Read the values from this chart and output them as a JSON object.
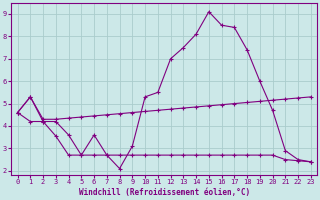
{
  "x": [
    0,
    1,
    2,
    3,
    4,
    5,
    6,
    7,
    8,
    9,
    10,
    11,
    12,
    13,
    14,
    15,
    16,
    17,
    18,
    19,
    20,
    21,
    22,
    23
  ],
  "line_main": [
    4.6,
    5.3,
    4.2,
    4.2,
    3.6,
    2.7,
    3.6,
    2.7,
    2.1,
    3.1,
    5.3,
    5.5,
    7.0,
    7.5,
    8.1,
    9.1,
    8.5,
    8.4,
    7.4,
    6.0,
    4.7,
    2.9,
    2.5,
    2.4
  ],
  "line_upper": [
    4.6,
    5.3,
    4.3,
    4.3,
    4.35,
    4.4,
    4.45,
    4.5,
    4.55,
    4.6,
    4.65,
    4.7,
    4.75,
    4.8,
    4.85,
    4.9,
    4.95,
    5.0,
    5.05,
    5.1,
    5.15,
    5.2,
    5.25,
    5.3
  ],
  "line_lower": [
    4.6,
    4.2,
    4.2,
    3.55,
    2.7,
    2.7,
    2.7,
    2.7,
    2.7,
    2.7,
    2.7,
    2.7,
    2.7,
    2.7,
    2.7,
    2.7,
    2.7,
    2.7,
    2.7,
    2.7,
    2.7,
    2.5,
    2.45,
    2.4
  ],
  "line_color": "#800080",
  "bg_color": "#cce8e8",
  "grid_color": "#aacccc",
  "xlabel": "Windchill (Refroidissement éolien,°C)",
  "ylim": [
    1.8,
    9.5
  ],
  "xlim": [
    -0.5,
    23.5
  ],
  "yticks": [
    2,
    3,
    4,
    5,
    6,
    7,
    8,
    9
  ],
  "xticks": [
    0,
    1,
    2,
    3,
    4,
    5,
    6,
    7,
    8,
    9,
    10,
    11,
    12,
    13,
    14,
    15,
    16,
    17,
    18,
    19,
    20,
    21,
    22,
    23
  ]
}
